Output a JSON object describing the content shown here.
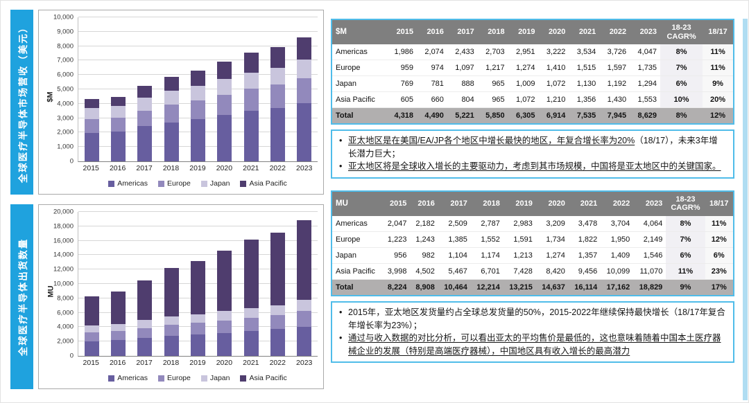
{
  "colors": {
    "banner_blue": "#1fa2de",
    "box_border_blue": "#4fbce9",
    "table_header_gray": "#7f7f7f",
    "total_row_gray": "#b1afaf",
    "americas": "#675e9f",
    "europe": "#9289bc",
    "japan": "#c9c5dd",
    "asia_pacific": "#4f3d6e"
  },
  "left_panels": [
    {
      "banner": "全球医疗半导体市场营收（美元）"
    },
    {
      "banner": "全球医疗半导体出货数量"
    }
  ],
  "chart_data": [
    {
      "type": "bar",
      "stacked": true,
      "title": "",
      "xlabel": "",
      "ylabel": "$M",
      "ylim": [
        0,
        10000
      ],
      "ytick_step": 1000,
      "grid": true,
      "legend_position": "bottom",
      "categories": [
        "2015",
        "2016",
        "2017",
        "2018",
        "2019",
        "2020",
        "2021",
        "2022",
        "2023"
      ],
      "series": [
        {
          "name": "Americas",
          "color": "#675e9f",
          "values": [
            1986,
            2074,
            2433,
            2703,
            2951,
            3222,
            3534,
            3726,
            4047
          ]
        },
        {
          "name": "Europe",
          "color": "#9289bc",
          "values": [
            959,
            974,
            1097,
            1217,
            1274,
            1410,
            1515,
            1597,
            1735
          ]
        },
        {
          "name": "Japan",
          "color": "#c9c5dd",
          "values": [
            769,
            781,
            888,
            965,
            1009,
            1072,
            1130,
            1192,
            1294
          ]
        },
        {
          "name": "Asia Pacific",
          "color": "#4f3d6e",
          "values": [
            605,
            660,
            804,
            965,
            1072,
            1210,
            1356,
            1430,
            1553
          ]
        }
      ]
    },
    {
      "type": "bar",
      "stacked": true,
      "title": "",
      "xlabel": "",
      "ylabel": "MU",
      "ylim": [
        0,
        20000
      ],
      "ytick_step": 2000,
      "grid": true,
      "legend_position": "bottom",
      "categories": [
        "2015",
        "2016",
        "2017",
        "2018",
        "2019",
        "2020",
        "2021",
        "2022",
        "2023"
      ],
      "series": [
        {
          "name": "Americas",
          "color": "#675e9f",
          "values": [
            2047,
            2182,
            2509,
            2787,
            2983,
            3209,
            3478,
            3704,
            4064
          ]
        },
        {
          "name": "Europe",
          "color": "#9289bc",
          "values": [
            1223,
            1243,
            1385,
            1552,
            1591,
            1734,
            1822,
            1950,
            2149
          ]
        },
        {
          "name": "Japan",
          "color": "#c9c5dd",
          "values": [
            956,
            982,
            1104,
            1174,
            1213,
            1274,
            1357,
            1409,
            1546
          ]
        },
        {
          "name": "Asia Pacific",
          "color": "#4f3d6e",
          "values": [
            3998,
            4502,
            5467,
            6701,
            7428,
            8420,
            9456,
            10099,
            11070
          ]
        }
      ]
    }
  ],
  "tables": [
    {
      "unit": "$M",
      "years": [
        "2015",
        "2016",
        "2017",
        "2018",
        "2019",
        "2020",
        "2021",
        "2022",
        "2023"
      ],
      "cagr_header": "18-23\nCAGR%",
      "yoy_header": "18/17",
      "rows": [
        {
          "label": "Americas",
          "values": [
            "1,986",
            "2,074",
            "2,433",
            "2,703",
            "2,951",
            "3,222",
            "3,534",
            "3,726",
            "4,047"
          ],
          "cagr": "8%",
          "yoy": "11%"
        },
        {
          "label": "Europe",
          "values": [
            "959",
            "974",
            "1,097",
            "1,217",
            "1,274",
            "1,410",
            "1,515",
            "1,597",
            "1,735"
          ],
          "cagr": "7%",
          "yoy": "11%"
        },
        {
          "label": "Japan",
          "values": [
            "769",
            "781",
            "888",
            "965",
            "1,009",
            "1,072",
            "1,130",
            "1,192",
            "1,294"
          ],
          "cagr": "6%",
          "yoy": "9%"
        },
        {
          "label": "Asia Pacific",
          "values": [
            "605",
            "660",
            "804",
            "965",
            "1,072",
            "1,210",
            "1,356",
            "1,430",
            "1,553"
          ],
          "cagr": "10%",
          "yoy": "20%"
        }
      ],
      "total": {
        "label": "Total",
        "values": [
          "4,318",
          "4,490",
          "5,221",
          "5,850",
          "6,305",
          "6,914",
          "7,535",
          "7,945",
          "8,629"
        ],
        "cagr": "8%",
        "yoy": "12%"
      }
    },
    {
      "unit": "MU",
      "years": [
        "2015",
        "2016",
        "2017",
        "2018",
        "2019",
        "2020",
        "2021",
        "2022",
        "2023"
      ],
      "cagr_header": "18-23\nCAGR%",
      "yoy_header": "18/17",
      "rows": [
        {
          "label": "Americas",
          "values": [
            "2,047",
            "2,182",
            "2,509",
            "2,787",
            "2,983",
            "3,209",
            "3,478",
            "3,704",
            "4,064"
          ],
          "cagr": "8%",
          "yoy": "11%"
        },
        {
          "label": "Europe",
          "values": [
            "1,223",
            "1,243",
            "1,385",
            "1,552",
            "1,591",
            "1,734",
            "1,822",
            "1,950",
            "2,149"
          ],
          "cagr": "7%",
          "yoy": "12%"
        },
        {
          "label": "Japan",
          "values": [
            "956",
            "982",
            "1,104",
            "1,174",
            "1,213",
            "1,274",
            "1,357",
            "1,409",
            "1,546"
          ],
          "cagr": "6%",
          "yoy": "6%"
        },
        {
          "label": "Asia Pacific",
          "values": [
            "3,998",
            "4,502",
            "5,467",
            "6,701",
            "7,428",
            "8,420",
            "9,456",
            "10,099",
            "11,070"
          ],
          "cagr": "11%",
          "yoy": "23%"
        }
      ],
      "total": {
        "label": "Total",
        "values": [
          "8,224",
          "8,908",
          "10,464",
          "12,214",
          "13,215",
          "14,637",
          "16,114",
          "17,162",
          "18,829"
        ],
        "cagr": "9%",
        "yoy": "17%"
      }
    }
  ],
  "notes": [
    {
      "bullets": [
        {
          "segments": [
            {
              "text": "亚太地区是在美国/EA/JP各个地区中增长最快的地区，年复合增长率为20%",
              "underline": true
            },
            {
              "text": "（18/17），未来3年增长潜力巨大；",
              "underline": false
            }
          ]
        },
        {
          "segments": [
            {
              "text": "亚太地区将是全球收入增长的主要驱动力，考虑到其市场规模，中国将是亚太地区中的关键国家。",
              "underline": true
            }
          ]
        }
      ]
    },
    {
      "bullets": [
        {
          "segments": [
            {
              "text": "2015年，亚太地区发货量约占全球总发货量的50%，2015-2022年继续保持最快增长（18/17年复合年增长率为23%）；",
              "underline": false
            }
          ]
        },
        {
          "segments": [
            {
              "text": "通过与收入数据的对比分析，可以看出亚太的平均售价是最低的，这也意味着随着中国本土医疗器械企业的发展（特别是高端医疗器械），中国地区具有收入增长的最高潜力",
              "underline": true
            }
          ]
        }
      ]
    }
  ]
}
